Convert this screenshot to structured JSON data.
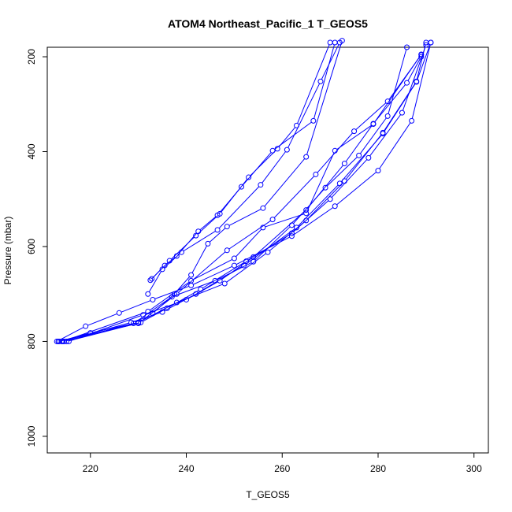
{
  "chart_data": {
    "type": "line",
    "title": "ATOM4 Northeast_Pacific_1 T_GEOS5",
    "xlabel": "T_GEOS5",
    "ylabel": "Pressure (mbar)",
    "xlim": [
      211,
      303
    ],
    "ylim": [
      1035,
      180
    ],
    "y_reversed": true,
    "grid": false,
    "x_ticks": [
      220,
      240,
      260,
      280,
      300
    ],
    "y_ticks": [
      200,
      400,
      600,
      800,
      1000
    ],
    "series_color": "#0000ff",
    "marker": "open-circle",
    "series": [
      {
        "x": [
          213.0,
          219.0,
          226.0,
          233.0,
          241.0,
          250.0,
          262.0,
          271.0,
          280.0,
          287.0,
          291.0
        ],
        "y": [
          800,
          768,
          740,
          712,
          682,
          640,
          578,
          515,
          440,
          335,
          170
        ]
      },
      {
        "x": [
          213.5,
          220.0,
          230.0,
          238.0,
          248.0,
          257.0,
          265.0,
          273.0,
          281.0,
          288.0,
          290.0
        ],
        "y": [
          800,
          782,
          760,
          718,
          678,
          612,
          545,
          462,
          360,
          252,
          170
        ]
      },
      {
        "x": [
          214.0,
          228.5,
          235.0,
          242.0,
          252.0,
          263.0,
          272.0,
          281.0,
          288.0,
          291.0
        ],
        "y": [
          800,
          760,
          738,
          700,
          640,
          560,
          467,
          362,
          253,
          170
        ]
      },
      {
        "x": [
          215.0,
          230.5,
          236.0,
          243.0,
          252.5,
          262.0,
          270.0,
          278.0,
          285.0,
          290.0
        ],
        "y": [
          800,
          760,
          730,
          690,
          631,
          572,
          500,
          413,
          318,
          175
        ]
      },
      {
        "x": [
          215.5,
          231.0,
          240.0,
          247.0,
          254.0,
          265.0,
          273.0,
          279.0,
          286.0,
          289.0
        ],
        "y": [
          800,
          744,
          712,
          672,
          622,
          523,
          425,
          341,
          255,
          200
        ]
      },
      {
        "x": [
          214.5,
          229.0,
          237.0,
          246.0,
          254.0,
          262.0,
          269.0,
          276.0,
          282.0,
          286.0
        ],
        "y": [
          800,
          762,
          706,
          672,
          632,
          555,
          476,
          408,
          325,
          180
        ]
      },
      {
        "x": [
          213.3,
          230.0,
          238.0,
          248.5,
          258.0,
          267.0,
          275.0,
          282.0,
          289.0
        ],
        "y": [
          800,
          762,
          700,
          608,
          543,
          448,
          357,
          294,
          196
        ]
      },
      {
        "x": [
          214.2,
          232.0,
          241.0,
          250.0,
          256.0,
          265.0,
          271.0,
          279.0,
          289.0
        ],
        "y": [
          800,
          737,
          672,
          625,
          560,
          530,
          398,
          342,
          195
        ]
      },
      {
        "x": [
          233.0,
          237.5,
          241.0,
          244.5,
          248.5,
          256.0,
          265.0,
          272.5
        ],
        "y": [
          741,
          700,
          660,
          594,
          558,
          519,
          411,
          166
        ]
      },
      {
        "x": [
          232.0,
          235.0,
          239.0,
          246.5,
          255.5,
          261.0,
          268.0,
          272.0
        ],
        "y": [
          700,
          648,
          612,
          565,
          470,
          396,
          252,
          170
        ]
      },
      {
        "x": [
          232.5,
          235.5,
          238.0,
          242.5,
          246.5,
          251.5,
          258.0,
          266.5,
          271.0
        ],
        "y": [
          671,
          640,
          620,
          568,
          534,
          474,
          398,
          335,
          170
        ]
      },
      {
        "x": [
          232.8,
          236.5,
          242.0,
          247.0,
          253.0,
          259.0,
          263.0,
          270.0
        ],
        "y": [
          668,
          630,
          577,
          531,
          454,
          394,
          345,
          170
        ]
      }
    ]
  }
}
